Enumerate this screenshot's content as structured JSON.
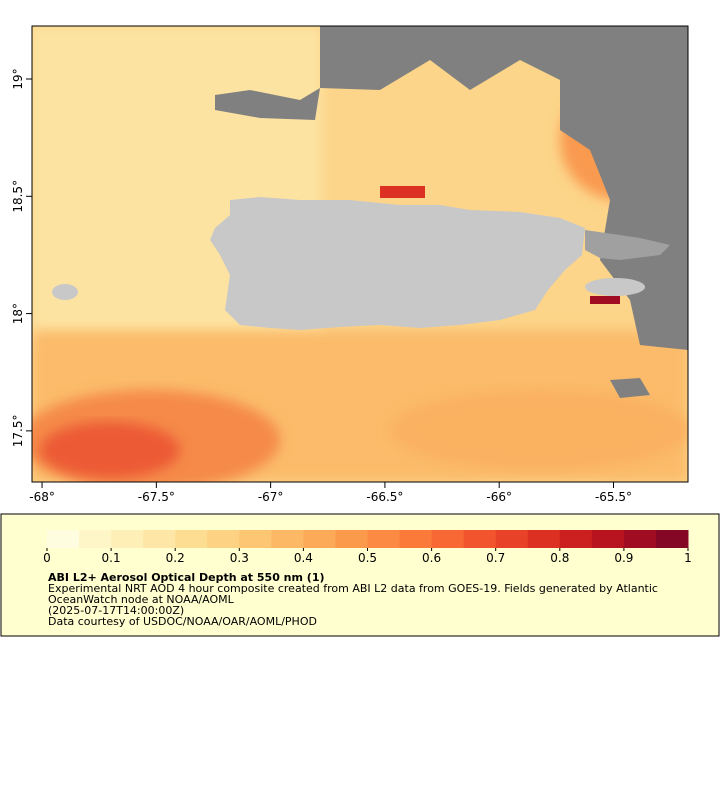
{
  "map": {
    "lon_range": [
      -68.044,
      -65.174
    ],
    "lat_range": [
      17.282,
      19.226
    ],
    "lon_ticks": [
      {
        "value": -68,
        "label": "-68°"
      },
      {
        "value": -67.5,
        "label": "-67.5°"
      },
      {
        "value": -67,
        "label": "-67°"
      },
      {
        "value": -66.5,
        "label": "-66.5°"
      },
      {
        "value": -66,
        "label": "-66°"
      },
      {
        "value": -65.5,
        "label": "-65.5°"
      }
    ],
    "lat_ticks": [
      {
        "value": 19,
        "label": "19°"
      },
      {
        "value": 18.5,
        "label": "18.5°"
      },
      {
        "value": 18,
        "label": "18°"
      },
      {
        "value": 17.5,
        "label": "17.5°"
      }
    ]
  },
  "colorbar": {
    "range": [
      0,
      1
    ],
    "ticks": [
      0,
      0.1,
      0.2,
      0.3,
      0.4,
      0.5,
      0.6,
      0.7,
      0.8,
      0.9,
      1
    ],
    "colors": [
      "#fffde0",
      "#fff6c8",
      "#feefb7",
      "#fee7a6",
      "#fddd92",
      "#fdd282",
      "#fdc673",
      "#fdb865",
      "#fdaa58",
      "#fc9a4c",
      "#fc8a42",
      "#fb7a3a",
      "#f86834",
      "#f2552e",
      "#e84328",
      "#dc3022",
      "#cc1f1f",
      "#b8141f",
      "#a00c22",
      "#840826"
    ]
  },
  "legend": {
    "title": "ABI L2+ Aerosol Optical Depth at 550 nm (1)",
    "lines": [
      "Experimental NRT AOD 4 hour composite created from ABI L2 data from GOES-19. Fields generated by Atlantic",
      "OceanWatch node at NOAA/AOML",
      "(2025-07-17T14:00:00Z)",
      "Data courtesy of USDOC/NOAA/OAR/AOML/PHOD"
    ]
  }
}
